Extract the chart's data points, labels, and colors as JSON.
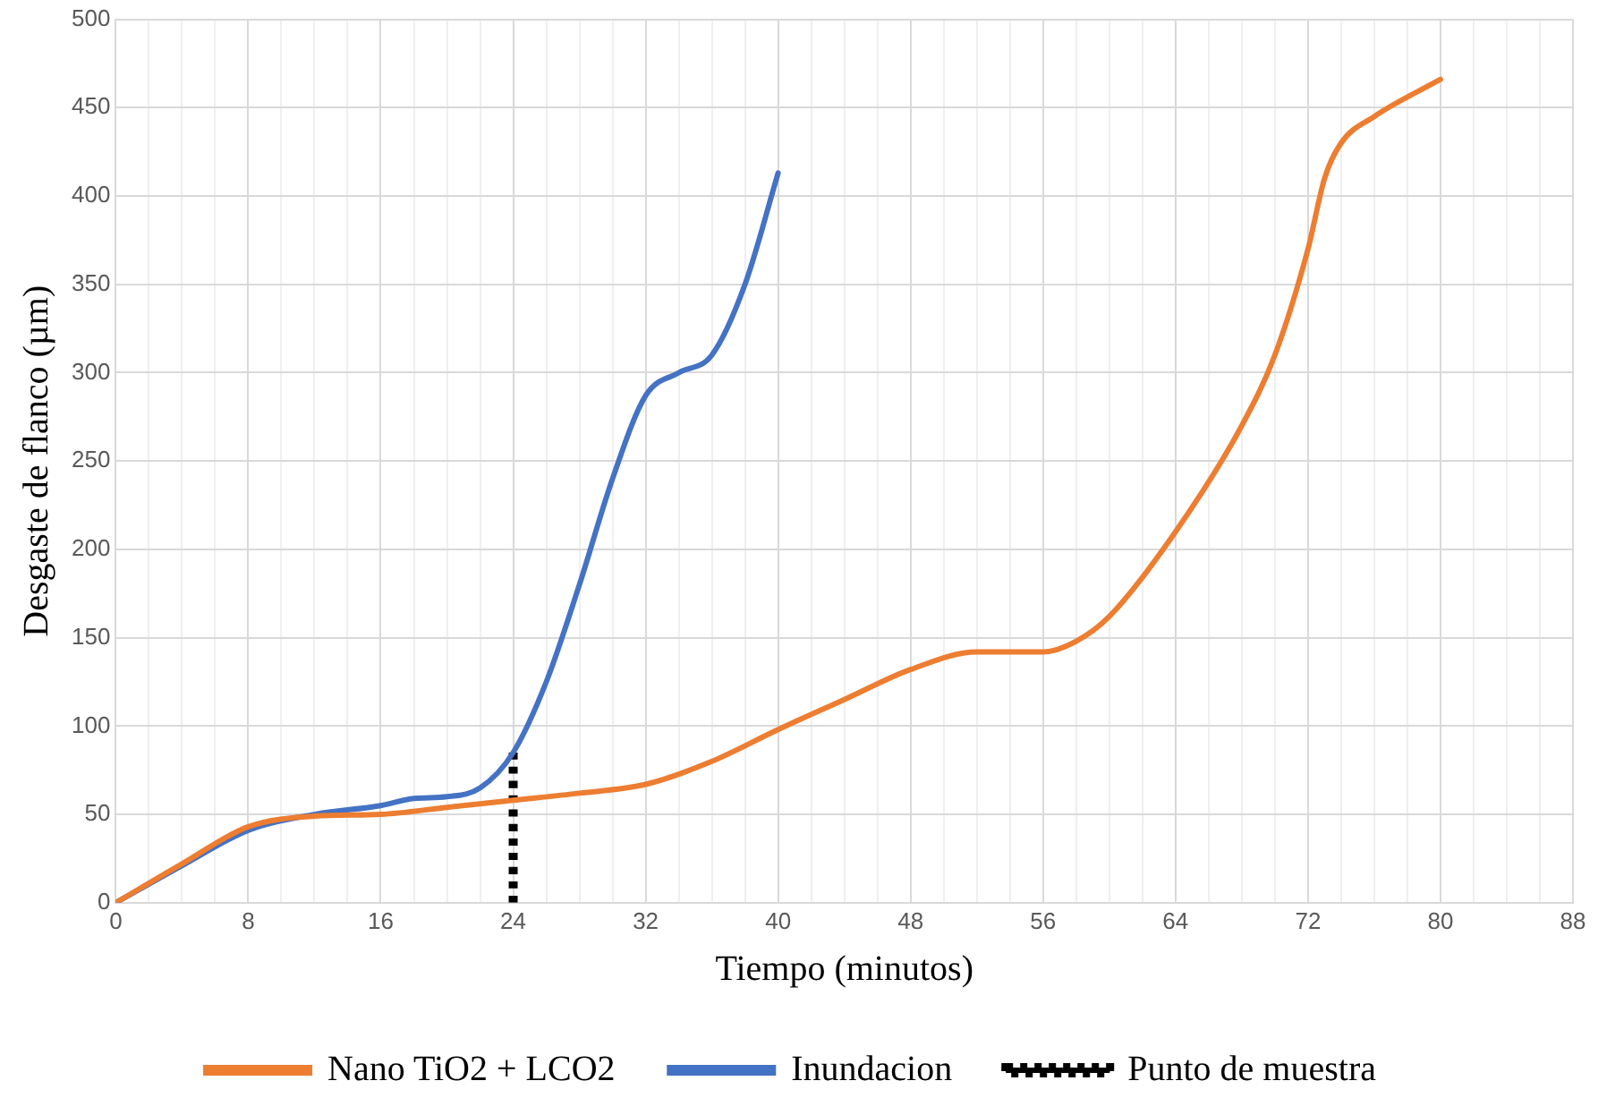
{
  "chart_data": {
    "type": "line",
    "xlabel": "Tiempo (minutos)",
    "ylabel": "Desgaste de flanco (µm)",
    "xlim": [
      0,
      88
    ],
    "xticks": [
      0,
      {
        "value": 2,
        "label": null
      },
      {
        "value": 4,
        "label": null
      },
      {
        "value": 6,
        "label": null
      },
      8,
      {
        "value": 10,
        "label": null
      },
      {
        "value": 12,
        "label": null
      },
      {
        "value": 14,
        "label": null
      },
      16,
      {
        "value": 18,
        "label": null
      },
      {
        "value": 20,
        "label": null
      },
      {
        "value": 22,
        "label": null
      },
      24,
      {
        "value": 26,
        "label": null
      },
      {
        "value": 28,
        "label": null
      },
      {
        "value": 30,
        "label": null
      },
      32,
      {
        "value": 34,
        "label": null
      },
      {
        "value": 36,
        "label": null
      },
      {
        "value": 38,
        "label": null
      },
      40,
      {
        "value": 42,
        "label": null
      },
      {
        "value": 44,
        "label": null
      },
      {
        "value": 46,
        "label": null
      },
      48,
      {
        "value": 50,
        "label": null
      },
      {
        "value": 52,
        "label": null
      },
      {
        "value": 54,
        "label": null
      },
      56,
      {
        "value": 58,
        "label": null
      },
      {
        "value": 60,
        "label": null
      },
      {
        "value": 62,
        "label": null
      },
      64,
      {
        "value": 66,
        "label": null
      },
      {
        "value": 68,
        "label": null
      },
      {
        "value": 70,
        "label": null
      },
      72,
      {
        "value": 74,
        "label": null
      },
      {
        "value": 76,
        "label": null
      },
      {
        "value": 78,
        "label": null
      },
      80,
      {
        "value": 82,
        "label": null
      },
      {
        "value": 84,
        "label": null
      },
      {
        "value": 86,
        "label": null
      },
      88
    ],
    "ylim": [
      0,
      500
    ],
    "yticks": [
      0,
      50,
      100,
      150,
      200,
      250,
      300,
      350,
      400,
      450,
      500
    ],
    "grid": true,
    "legend": "bottom",
    "marker": "none",
    "series": [
      {
        "name": "Nano TiO2 + LCO2",
        "color": "#ed7d31",
        "line_style": "solid",
        "x": [
          0,
          4,
          8,
          12,
          16,
          20,
          24,
          28,
          32,
          36,
          40,
          44,
          48,
          52,
          56,
          58,
          60,
          64,
          68,
          70,
          72,
          73,
          74,
          76,
          80
        ],
        "values": [
          0,
          22,
          43,
          49,
          50,
          54,
          58,
          62,
          67,
          80,
          98,
          115,
          132,
          142,
          142,
          148,
          162,
          210,
          270,
          310,
          370,
          410,
          430,
          445,
          466
        ]
      },
      {
        "name": "Inundacion",
        "color": "#4472c4",
        "line_style": "solid",
        "x": [
          0,
          4,
          8,
          12,
          16,
          18,
          20,
          22,
          24,
          26,
          28,
          30,
          32,
          34,
          36,
          38,
          40
        ],
        "values": [
          0,
          21,
          41,
          50,
          55,
          59,
          60,
          65,
          85,
          125,
          180,
          240,
          287,
          300,
          310,
          350,
          413
        ]
      },
      {
        "name": "Punto de muestra",
        "color": "#000000",
        "line_style": "dotted",
        "x": [
          24,
          24
        ],
        "values": [
          0,
          85
        ]
      }
    ]
  }
}
